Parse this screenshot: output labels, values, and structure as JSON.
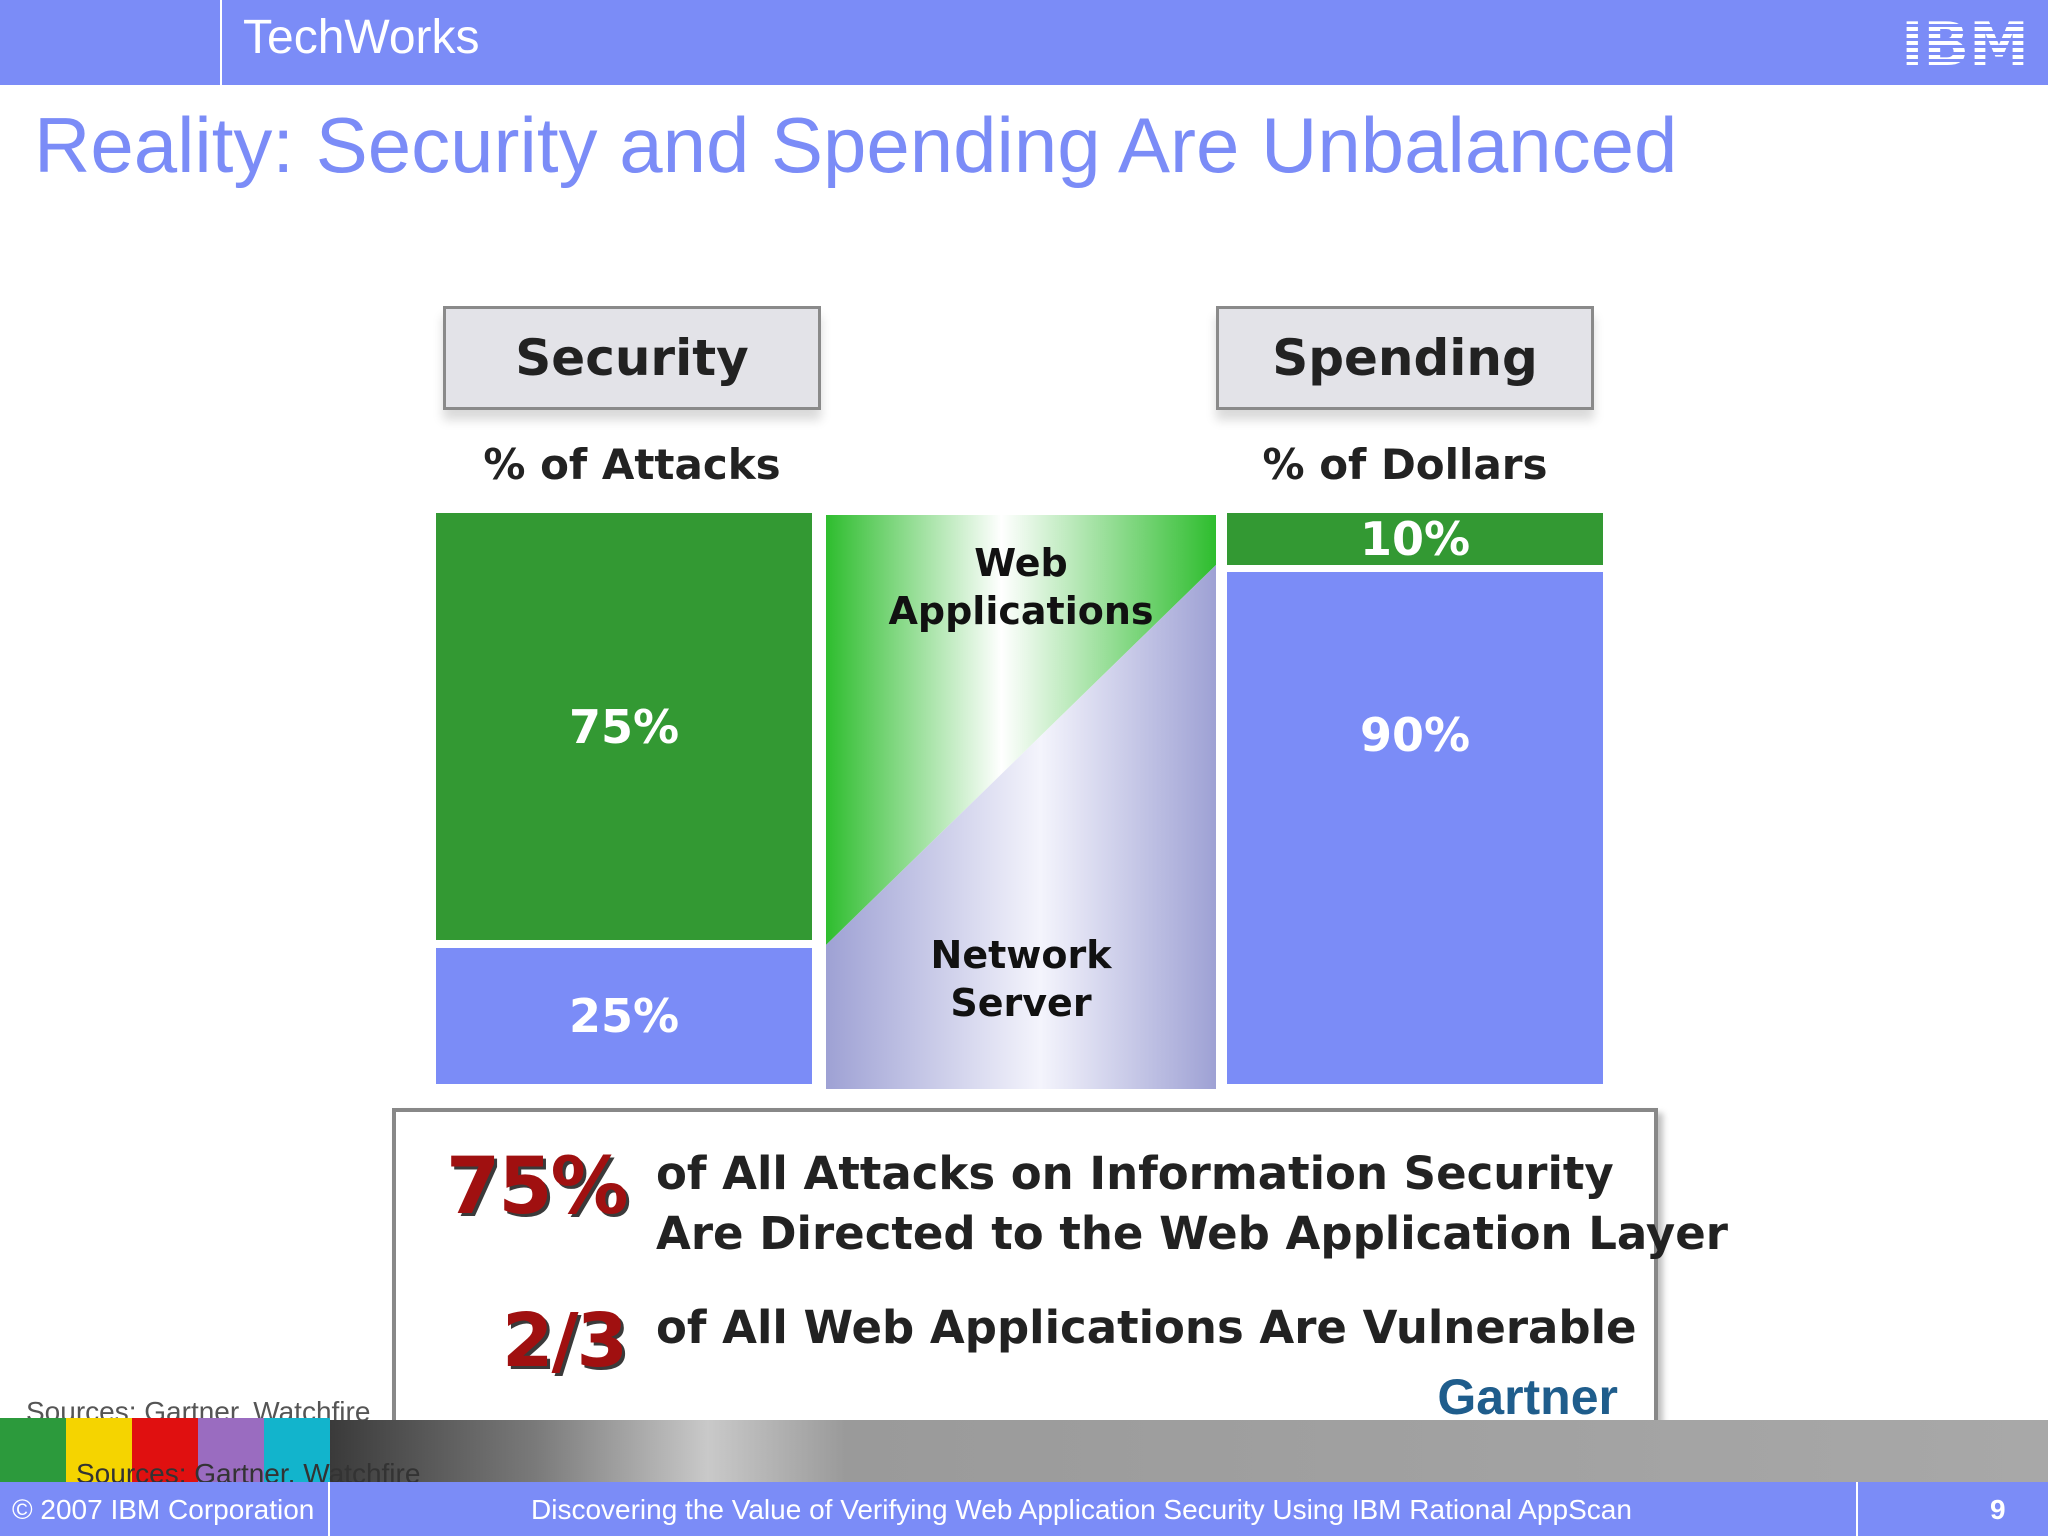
{
  "header": {
    "brand": "TechWorks",
    "logo": "IBM"
  },
  "title": "Reality: Security and Spending Are Unbalanced",
  "security": {
    "header": "Security",
    "subheader": "% of Attacks",
    "web_pct": "75%",
    "network_pct": "25%"
  },
  "spending": {
    "header": "Spending",
    "subheader": "% of Dollars",
    "web_pct": "10%",
    "network_pct": "90%"
  },
  "middle": {
    "top_label": [
      "Web",
      "Applications"
    ],
    "bottom_label": [
      "Network",
      "Server"
    ]
  },
  "callout": {
    "stat1": "75%",
    "stat1_line1": "of All Attacks on Information Security",
    "stat1_line2": "Are Directed to the Web Application Layer",
    "stat2": "2/3",
    "stat2_text": "of All Web Applications Are Vulnerable",
    "source_logo": "Gartner"
  },
  "sources": "Sources: Gartner, Watchfire",
  "footer": {
    "copyright": "© 2007 IBM Corporation",
    "deck_title": "Discovering the Value of Verifying Web Application Security Using IBM Rational AppScan",
    "page": "9"
  },
  "colors": {
    "accent_blue": "#7b8cf7",
    "green": "#339933",
    "dark_red": "#a01010",
    "swatches": [
      "#2c9a3c",
      "#f5d400",
      "#e01010",
      "#9a6cc0",
      "#12b4cc"
    ]
  }
}
